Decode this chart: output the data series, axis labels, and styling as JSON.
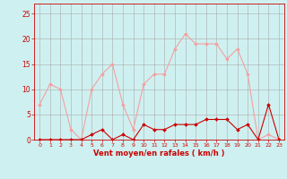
{
  "x": [
    0,
    1,
    2,
    3,
    4,
    5,
    6,
    7,
    8,
    9,
    10,
    11,
    12,
    13,
    14,
    15,
    16,
    17,
    18,
    19,
    20,
    21,
    22,
    23
  ],
  "rafales": [
    7,
    11,
    10,
    2,
    0,
    10,
    13,
    15,
    7,
    2,
    11,
    13,
    13,
    18,
    21,
    19,
    19,
    19,
    16,
    18,
    13,
    0,
    1,
    0
  ],
  "moyen": [
    0,
    0,
    0,
    0,
    0,
    1,
    2,
    0,
    1,
    0,
    3,
    2,
    2,
    3,
    3,
    3,
    4,
    4,
    4,
    2,
    3,
    0,
    7,
    0
  ],
  "color_rafales": "#f4a0a0",
  "color_moyen": "#cc0000",
  "bg_color": "#cff0f0",
  "grid_color": "#aaaaaa",
  "xlabel": "Vent moyen/en rafales ( km/h )",
  "xlabel_color": "#cc0000",
  "tick_color": "#cc0000",
  "ylim": [
    0,
    27
  ],
  "yticks": [
    0,
    5,
    10,
    15,
    20,
    25
  ],
  "xlim": [
    -0.5,
    23.5
  ]
}
